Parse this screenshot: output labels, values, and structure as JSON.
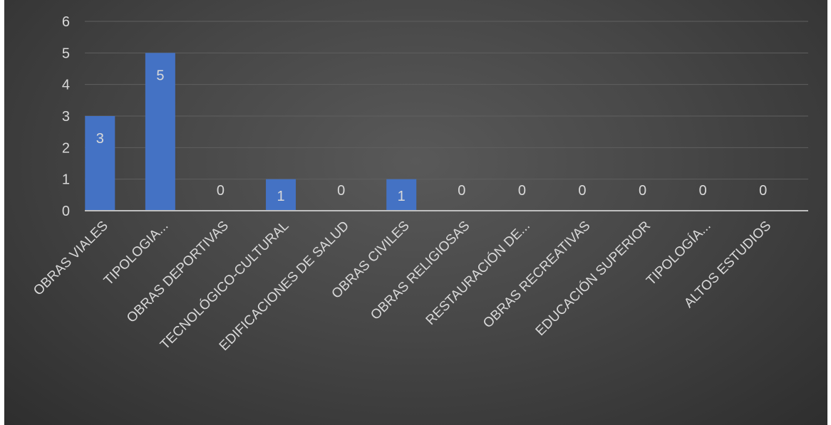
{
  "chart_data": {
    "type": "bar",
    "categories": [
      "OBRAS VIALES",
      "TIPOLOGIA...",
      "OBRAS DEPORTIVAS",
      "TECNOLÓGICO-CULTURAL",
      "EDIFICACIONES DE SALUD",
      "OBRAS CIVILES",
      "OBRAS RELIGIOSAS",
      "RESTAURACIÓN DE...",
      "OBRAS RECREATIVAS",
      "EDUCACIÓN SUPERIOR",
      "TIPOLOGÍA...",
      "ALTOS ESTUDIOS"
    ],
    "values": [
      3,
      5,
      0,
      1,
      0,
      1,
      0,
      0,
      0,
      0,
      0,
      0
    ],
    "yticks": [
      "0",
      "1",
      "2",
      "3",
      "4",
      "5",
      "6"
    ],
    "ylim": [
      0,
      6
    ],
    "title": "",
    "xlabel": "",
    "ylabel": "",
    "grid": true,
    "bar_color": "#4472c4",
    "background_color": "#404040",
    "text_color": "#d9d9d9"
  }
}
